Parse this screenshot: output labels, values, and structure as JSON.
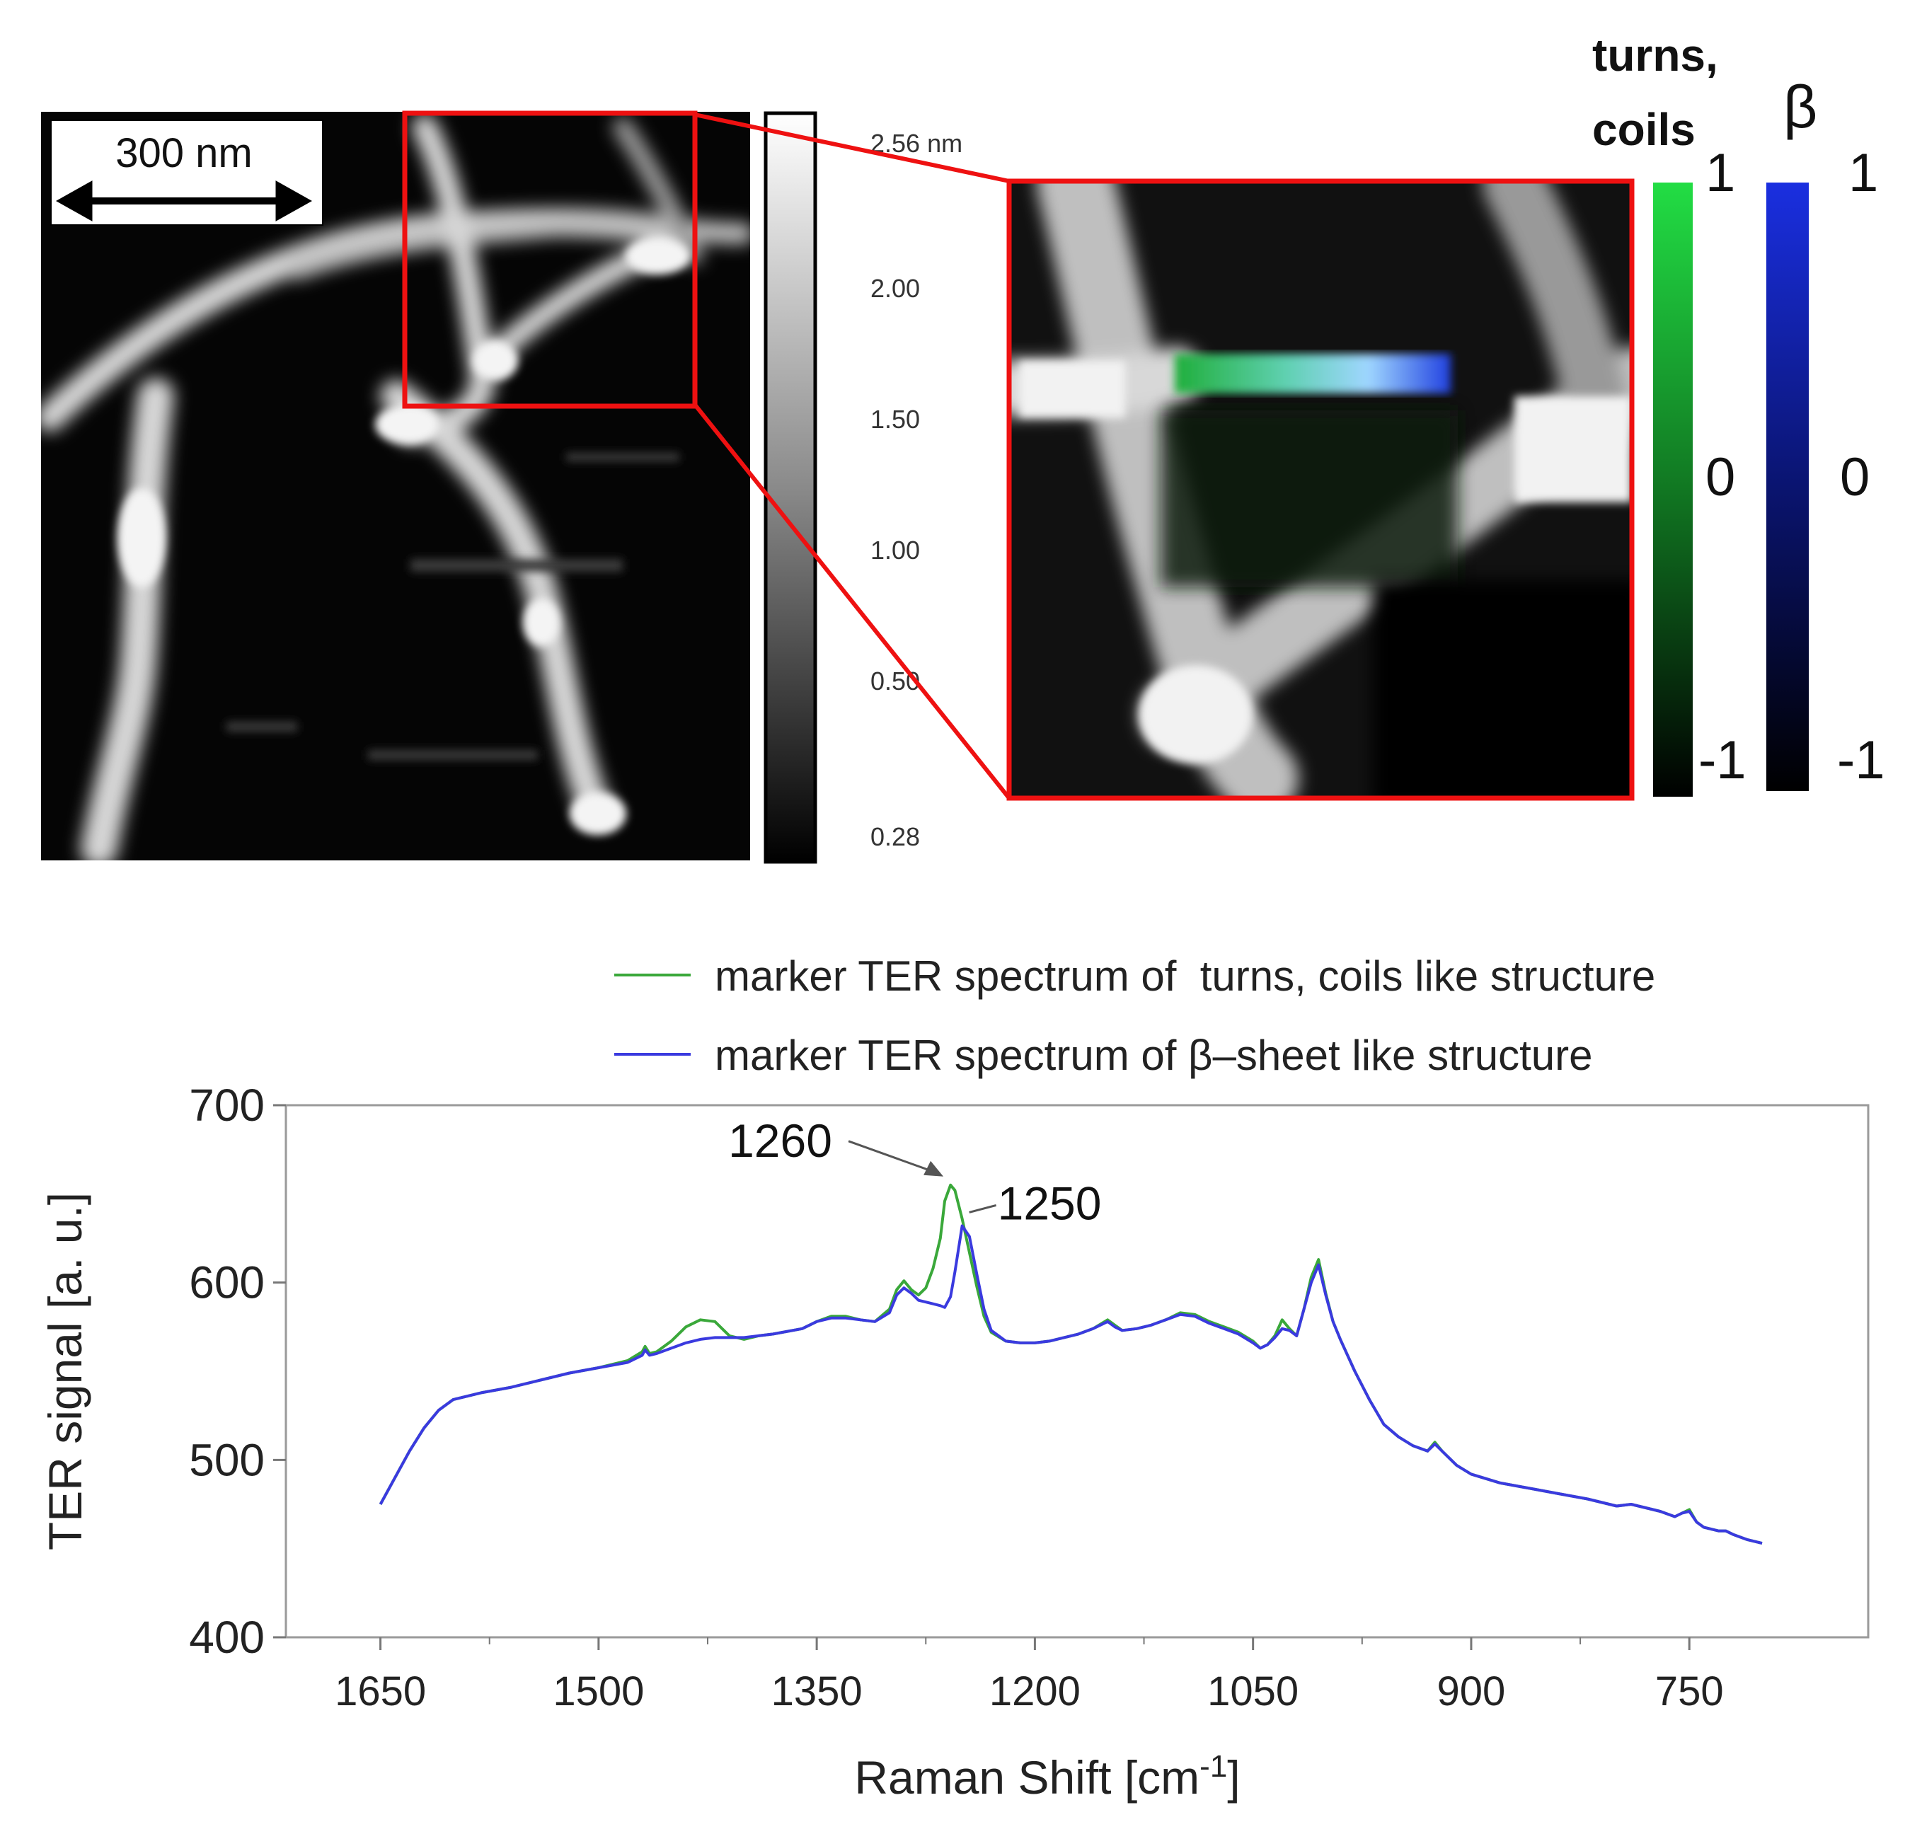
{
  "afm": {
    "scale_bar_label": "300 nm",
    "colorbar_ticks": [
      "2.56 nm",
      "2.00",
      "1.50",
      "1.00",
      "0.50",
      "0.28"
    ]
  },
  "inset": {
    "turns_label_line1": "turns,",
    "turns_label_line2": "coils",
    "beta_label": "β",
    "green_ticks": [
      "1",
      "0",
      "-1"
    ],
    "blue_ticks": [
      "1",
      "0",
      "-1"
    ]
  },
  "colors": {
    "green_series": "#3aa83a",
    "blue_series": "#3a3adf",
    "highlight_box": "#ee1111",
    "green_bar": "#22cc44",
    "blue_bar": "#1a2fe0"
  },
  "chart_data": {
    "type": "line",
    "xlabel": "Raman Shift [cm",
    "xlabel_sup": "-1",
    "xlabel_end": "]",
    "ylabel": "TER signal [a. u.]",
    "xlim": [
      1650,
      700
    ],
    "ylim": [
      400,
      700
    ],
    "x_reversed": true,
    "x_ticks": [
      1650,
      1500,
      1350,
      1200,
      1050,
      900,
      750
    ],
    "y_ticks": [
      400,
      500,
      600,
      700
    ],
    "legend_position": "top",
    "annotations": [
      {
        "text": "1260",
        "x": 1260,
        "y": 655
      },
      {
        "text": "1250",
        "x": 1250,
        "y": 638
      }
    ],
    "series": [
      {
        "name": "marker TER spectrum of  turns, coils like structure",
        "color": "#3aa83a",
        "x": [
          1650,
          1640,
          1630,
          1620,
          1610,
          1600,
          1590,
          1580,
          1560,
          1540,
          1520,
          1500,
          1480,
          1470,
          1468,
          1465,
          1460,
          1450,
          1440,
          1430,
          1420,
          1410,
          1400,
          1390,
          1380,
          1360,
          1350,
          1340,
          1330,
          1320,
          1310,
          1300,
          1295,
          1290,
          1285,
          1280,
          1275,
          1270,
          1265,
          1262,
          1258,
          1255,
          1250,
          1245,
          1240,
          1235,
          1230,
          1220,
          1210,
          1200,
          1190,
          1180,
          1170,
          1160,
          1150,
          1145,
          1140,
          1130,
          1120,
          1110,
          1100,
          1090,
          1080,
          1070,
          1060,
          1050,
          1045,
          1040,
          1035,
          1030,
          1025,
          1020,
          1015,
          1010,
          1005,
          1000,
          995,
          990,
          980,
          970,
          960,
          950,
          940,
          930,
          925,
          920,
          910,
          900,
          880,
          860,
          840,
          820,
          800,
          790,
          780,
          770,
          760,
          755,
          750,
          745,
          740,
          730,
          725,
          720,
          710,
          700
        ],
        "y": [
          475,
          490,
          505,
          518,
          528,
          534,
          536,
          538,
          541,
          545,
          549,
          552,
          556,
          561,
          564,
          560,
          561,
          567,
          575,
          579,
          578,
          570,
          568,
          570,
          571,
          574,
          578,
          581,
          581,
          579,
          578,
          585,
          596,
          601,
          596,
          593,
          597,
          608,
          625,
          646,
          655,
          652,
          636,
          617,
          598,
          581,
          572,
          567,
          566,
          566,
          567,
          569,
          571,
          574,
          579,
          576,
          573,
          574,
          576,
          579,
          583,
          582,
          578,
          575,
          572,
          567,
          563,
          565,
          570,
          579,
          574,
          570,
          585,
          603,
          613,
          594,
          578,
          568,
          550,
          534,
          520,
          513,
          508,
          505,
          510,
          505,
          497,
          492,
          487,
          484,
          481,
          478,
          474,
          475,
          473,
          471,
          468,
          470,
          472,
          465,
          462,
          460,
          460,
          458,
          455,
          453
        ]
      },
      {
        "name": "marker TER spectrum of β–sheet like structure",
        "color": "#3a3adf",
        "x": [
          1650,
          1640,
          1630,
          1620,
          1610,
          1600,
          1590,
          1580,
          1560,
          1540,
          1520,
          1500,
          1480,
          1470,
          1468,
          1465,
          1460,
          1450,
          1440,
          1430,
          1420,
          1410,
          1400,
          1390,
          1380,
          1360,
          1350,
          1340,
          1330,
          1320,
          1310,
          1300,
          1295,
          1290,
          1285,
          1280,
          1275,
          1270,
          1265,
          1262,
          1258,
          1255,
          1250,
          1245,
          1240,
          1235,
          1230,
          1220,
          1210,
          1200,
          1190,
          1180,
          1170,
          1160,
          1150,
          1145,
          1140,
          1130,
          1120,
          1110,
          1100,
          1090,
          1080,
          1070,
          1060,
          1050,
          1045,
          1040,
          1035,
          1030,
          1025,
          1020,
          1015,
          1010,
          1005,
          1000,
          995,
          990,
          980,
          970,
          960,
          950,
          940,
          930,
          925,
          920,
          910,
          900,
          880,
          860,
          840,
          820,
          800,
          790,
          780,
          770,
          760,
          755,
          750,
          745,
          740,
          730,
          725,
          720,
          710,
          700
        ],
        "y": [
          475,
          490,
          505,
          518,
          528,
          534,
          536,
          538,
          541,
          545,
          549,
          552,
          555,
          559,
          562,
          559,
          560,
          563,
          566,
          568,
          569,
          569,
          569,
          570,
          571,
          574,
          578,
          580,
          580,
          579,
          578,
          583,
          593,
          597,
          594,
          590,
          589,
          588,
          587,
          586,
          592,
          606,
          632,
          626,
          605,
          585,
          573,
          567,
          566,
          566,
          567,
          569,
          571,
          574,
          578,
          575,
          573,
          574,
          576,
          579,
          582,
          581,
          577,
          574,
          571,
          566,
          563,
          565,
          569,
          574,
          573,
          570,
          585,
          600,
          610,
          593,
          578,
          568,
          550,
          534,
          520,
          513,
          508,
          505,
          509,
          505,
          497,
          492,
          487,
          484,
          481,
          478,
          474,
          475,
          473,
          471,
          468,
          470,
          471,
          465,
          462,
          460,
          460,
          458,
          455,
          453
        ]
      }
    ]
  }
}
